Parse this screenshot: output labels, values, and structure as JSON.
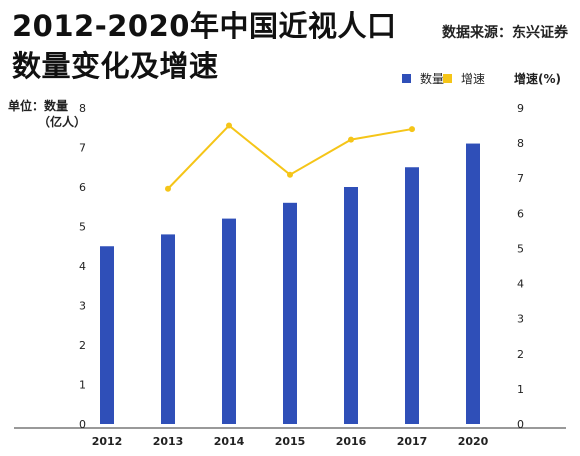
{
  "title_line1": "2012-2020年中国近视人口",
  "title_line2": "数量变化及增速",
  "source": "数据来源：东兴证券",
  "left_unit_line1": "单位：数量",
  "left_unit_line2": "（亿人）",
  "right_unit": "增速(%)",
  "colors": {
    "bar": "#2f4fb8",
    "line": "#f5c518",
    "baseline": "#333333"
  },
  "chart_data": {
    "type": "bar+line",
    "categories": [
      "2012",
      "2013",
      "2014",
      "2015",
      "2016",
      "2017",
      "2020"
    ],
    "series": [
      {
        "name": "数量",
        "type": "bar",
        "axis": "left",
        "values": [
          4.5,
          4.8,
          5.2,
          5.6,
          6.0,
          6.5,
          7.1
        ]
      },
      {
        "name": "增速",
        "type": "line",
        "axis": "right",
        "values": [
          null,
          6.7,
          8.5,
          7.1,
          8.1,
          8.4,
          null
        ]
      }
    ],
    "y_left": {
      "min": 0,
      "max": 8,
      "ticks": [
        0,
        1,
        2,
        3,
        4,
        5,
        6,
        7,
        8
      ]
    },
    "y_right": {
      "min": 0,
      "max": 9,
      "ticks": [
        0,
        1,
        2,
        3,
        4,
        5,
        6,
        7,
        8,
        9
      ]
    },
    "legend_position": "top-right",
    "grid": false
  }
}
